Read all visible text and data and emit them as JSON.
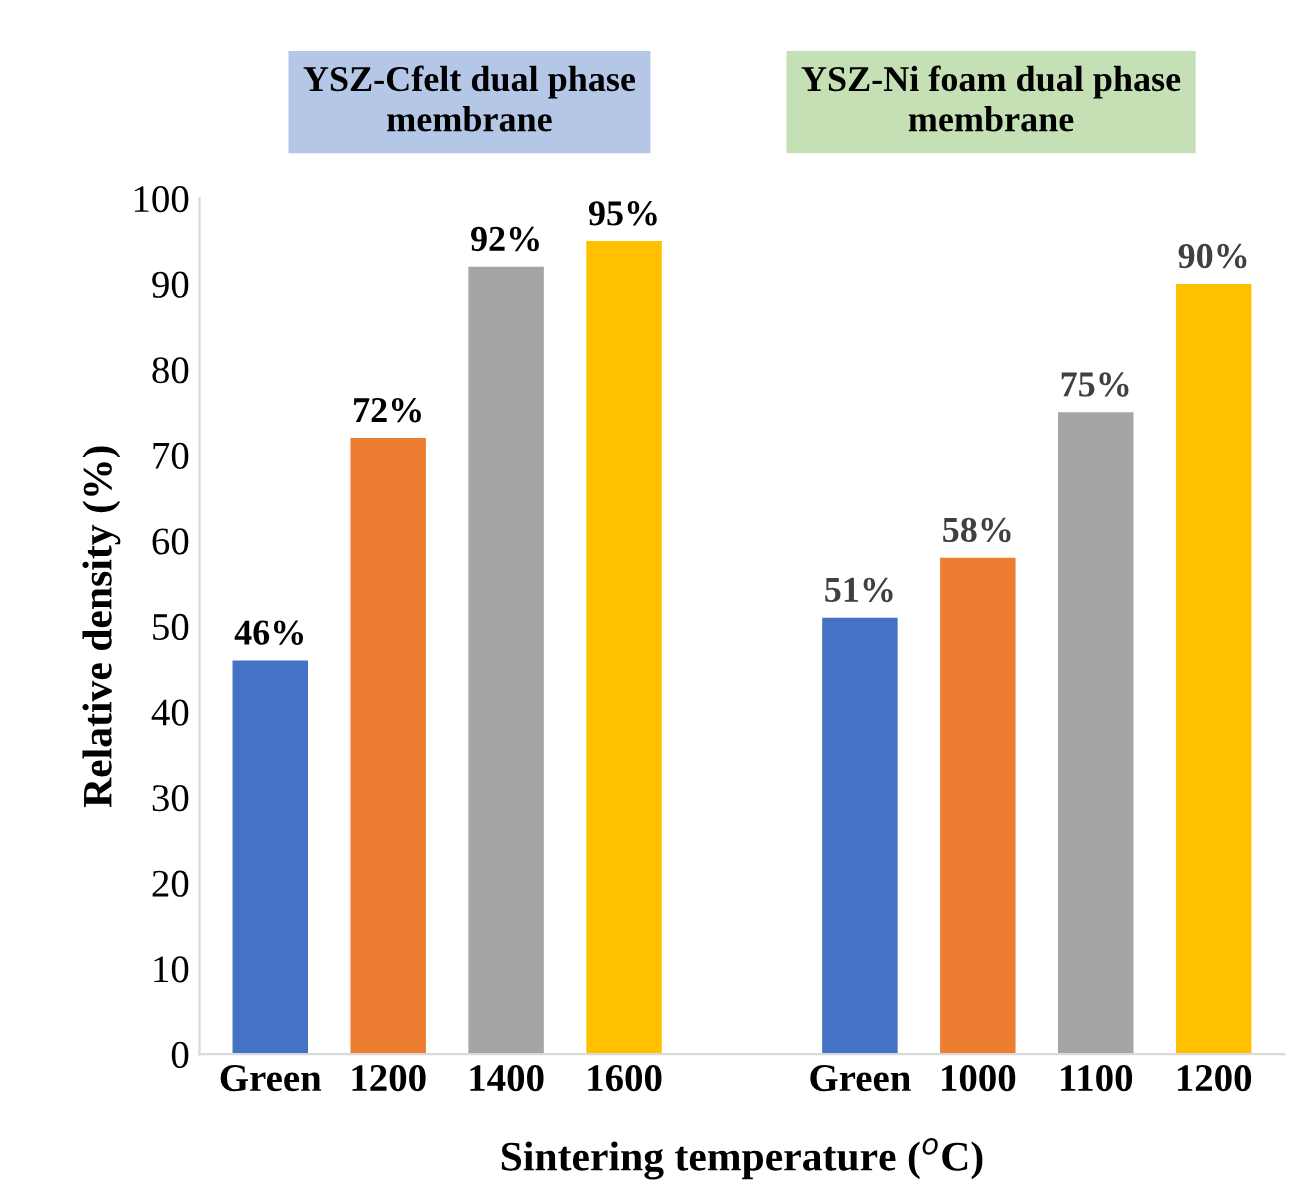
{
  "chart_data": {
    "type": "bar",
    "categories": [
      "Green",
      "1200",
      "1400",
      "1600",
      null,
      "Green",
      "1000",
      "1100",
      "1200"
    ],
    "values": [
      46,
      72,
      92,
      95,
      null,
      51,
      58,
      75,
      90
    ],
    "colors": [
      "#4472c4",
      "#ed7d31",
      "#a5a5a5",
      "#ffc000",
      null,
      "#4472c4",
      "#ed7d31",
      "#a5a5a5",
      "#ffc000"
    ],
    "value_labels": [
      "46%",
      "72%",
      "92%",
      "95%",
      null,
      "51%",
      "58%",
      "75%",
      "90%"
    ],
    "xlabel": "Sintering temperature ($^{o}$C)",
    "ylabel": "Relative density (%)",
    "ylim": [
      0,
      100
    ],
    "yticks": [
      0,
      10,
      20,
      30,
      40,
      50,
      60,
      70,
      80,
      90,
      100
    ],
    "annotations": [
      "YSZ-Cfelt dual phase\nmembrane",
      "YSZ-Ni foam dual phase\nmembrane"
    ],
    "grid": false,
    "legend": false
  }
}
